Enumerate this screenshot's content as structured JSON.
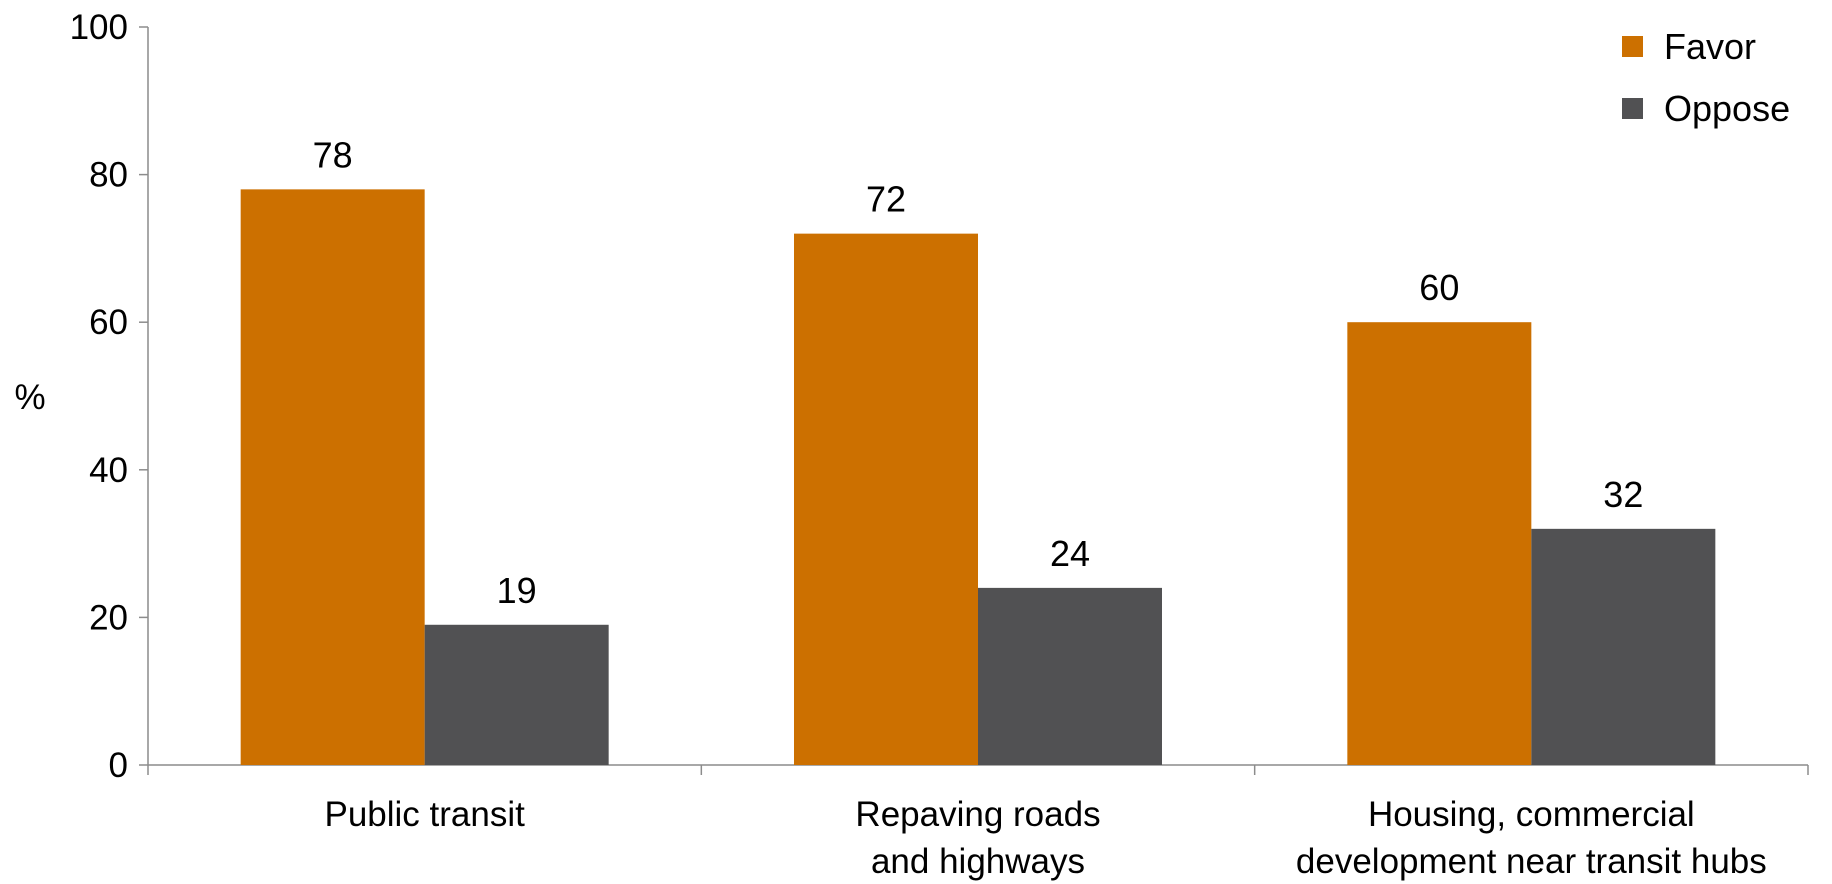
{
  "chart_data": {
    "type": "bar",
    "title": "",
    "xlabel": "",
    "ylabel": "%",
    "ylim": [
      0,
      100
    ],
    "yticks": [
      0,
      20,
      40,
      60,
      80,
      100
    ],
    "grid": false,
    "legend_position": "top-right",
    "categories": [
      [
        "Public transit"
      ],
      [
        "Repaving roads",
        "and highways"
      ],
      [
        "Housing, commercial",
        "development near transit hubs"
      ]
    ],
    "series": [
      {
        "name": "Favor",
        "color": "#cc7000",
        "values": [
          78,
          72,
          60
        ]
      },
      {
        "name": "Oppose",
        "color": "#515153",
        "values": [
          19,
          24,
          32
        ]
      }
    ]
  }
}
